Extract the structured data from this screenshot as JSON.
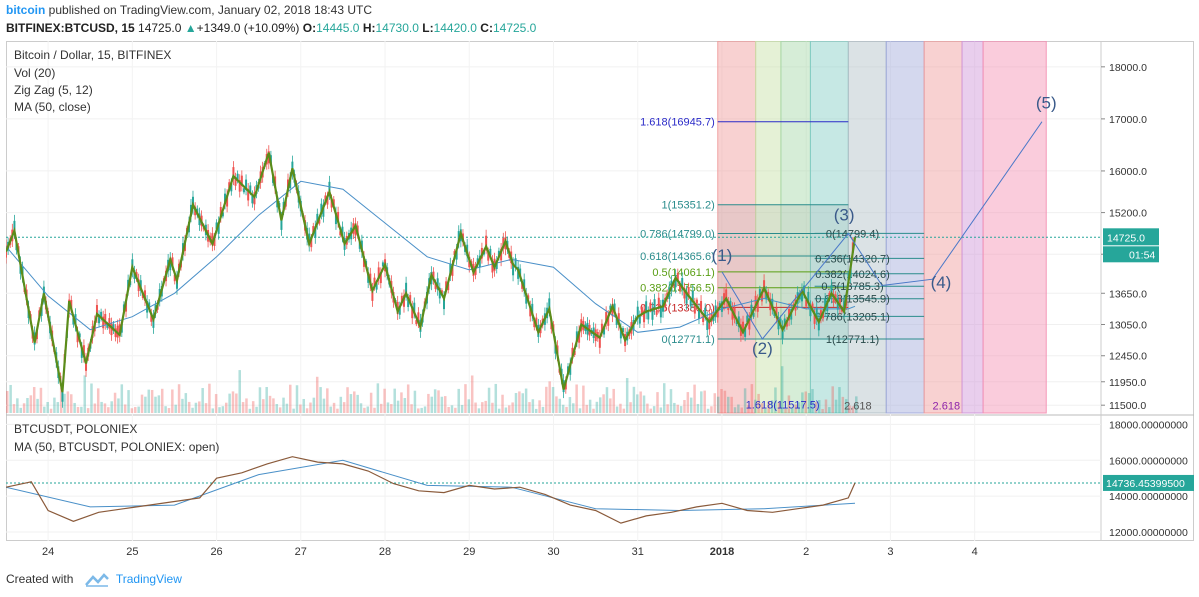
{
  "header": {
    "brand": "bitcoin",
    "published_text": "published on TradingView.com, January 02, 2018 18:43 UTC",
    "symbol": "BITFINEX:BTCUSD, 15",
    "price": "14725.0",
    "change": "+1349.0 (+10.09%)",
    "o_label": "O:",
    "o_value": "14445.0",
    "h_label": "H:",
    "h_value": "14730.0",
    "l_label": "L:",
    "l_value": "14420.0",
    "c_label": "C:",
    "c_value": "14725.0"
  },
  "main_pane": {
    "title": "Bitcoin / Dollar, 15, BITFINEX",
    "indicators": [
      "Vol (20)",
      "Zig Zag (5, 12)",
      "MA (50, close)"
    ],
    "last_price_label": "14725.0",
    "countdown_label": "01:54"
  },
  "lower_pane": {
    "title": "BTCUSDT, POLONIEX",
    "indicator": "MA (50, BTCUSDT, POLONIEX: open)",
    "last_price_label": "14736.45399500"
  },
  "footer": {
    "created_with": "Created with",
    "brand": "TradingView"
  },
  "colors": {
    "up": "#26a69a",
    "down": "#ef5350",
    "zigzag": "#5b8c1a",
    "ma": "#4a90c8",
    "fib_ext": "#2a2ac8"
  },
  "chart_data": [
    {
      "type": "line",
      "title": "Bitcoin / Dollar, 15, BITFINEX",
      "y_axis_ticks": [
        18000,
        17000,
        16000,
        15200,
        14400,
        13650,
        13050,
        12450,
        11950,
        11500
      ],
      "y_tick_labels": [
        "18000.0",
        "17000.0",
        "16000.0",
        "15200.0",
        "14400.0",
        "13650.0",
        "13050.0",
        "12450.0",
        "11950.0",
        "11500.0"
      ],
      "ylim": [
        11350,
        18400
      ],
      "x_tick_labels": [
        "24",
        "25",
        "26",
        "27",
        "28",
        "29",
        "30",
        "31",
        "2018",
        "2",
        "3",
        "4"
      ],
      "x_tick_days": [
        1,
        2,
        3,
        4,
        5,
        6,
        7,
        8,
        9,
        10,
        11,
        12
      ],
      "xlim": [
        0.5,
        13.5
      ],
      "series": [
        {
          "name": "Zig Zag (5, 12)",
          "x": [
            0.5,
            0.6,
            0.84,
            0.95,
            1.17,
            1.25,
            1.45,
            1.58,
            1.85,
            2.0,
            2.25,
            2.45,
            2.53,
            2.72,
            2.95,
            3.2,
            3.45,
            3.62,
            3.77,
            3.9,
            4.1,
            4.34,
            4.52,
            4.65,
            4.85,
            5.0,
            5.15,
            5.25,
            5.42,
            5.55,
            5.7,
            5.9,
            6.05,
            6.2,
            6.3,
            6.43,
            6.52,
            6.58,
            6.82,
            6.95,
            7.12,
            7.33,
            7.55,
            7.7,
            7.85,
            8.0,
            8.1,
            8.3,
            8.45,
            8.58,
            8.85,
            9.05,
            9.25,
            9.5,
            9.72,
            9.95,
            10.15,
            10.3,
            10.45,
            10.58
          ],
          "y": [
            14450,
            14850,
            12700,
            13650,
            11750,
            13500,
            12300,
            13250,
            12850,
            14150,
            13150,
            14300,
            13900,
            15350,
            14600,
            15900,
            15500,
            16350,
            15050,
            16050,
            14600,
            15600,
            14600,
            14950,
            13700,
            14200,
            13300,
            13650,
            13000,
            14000,
            13550,
            14800,
            14050,
            14550,
            14150,
            14650,
            14200,
            14100,
            12900,
            13350,
            11800,
            13050,
            12800,
            13400,
            12750,
            13200,
            13300,
            13400,
            13950,
            13650,
            13100,
            13550,
            12900,
            13750,
            12950,
            13700,
            13100,
            13650,
            13300,
            14725
          ]
        },
        {
          "name": "MA (50, close)",
          "x": [
            0.5,
            1.0,
            1.5,
            2.0,
            2.5,
            3.0,
            3.5,
            4.0,
            4.5,
            5.0,
            5.5,
            6.0,
            6.5,
            7.0,
            7.5,
            8.0,
            8.5,
            9.0,
            9.5,
            10.0,
            10.5,
            10.58
          ],
          "y": [
            14550,
            13600,
            12950,
            13200,
            13650,
            14350,
            15150,
            15800,
            15650,
            15000,
            14350,
            14100,
            14300,
            14150,
            13450,
            12900,
            13000,
            13350,
            13550,
            13350,
            13350,
            13400
          ]
        },
        {
          "name": "Elliott wave path",
          "x": [
            9.0,
            9.48,
            10.5,
            10.9,
            11.5,
            12.8
          ],
          "y": [
            14061,
            12771,
            14799,
            13800,
            13920,
            16945
          ]
        }
      ],
      "elliott_labels": [
        {
          "label": "(1)",
          "x": 9.0,
          "y": 14270
        },
        {
          "label": "(2)",
          "x": 9.48,
          "y": 12480
        },
        {
          "label": "(3)",
          "x": 10.45,
          "y": 15050
        },
        {
          "label": "(4)",
          "x": 11.6,
          "y": 13750
        },
        {
          "label": "(5)",
          "x": 12.85,
          "y": 17200
        }
      ],
      "fib_levels": [
        {
          "label": "1.618(16945.7)",
          "value": 16945.7
        },
        {
          "label": "1(15351.2)",
          "value": 15351.2
        },
        {
          "label": "0.786(14799.0)",
          "value": 14799.0
        },
        {
          "label": "0.618(14365.6)",
          "value": 14365.6
        },
        {
          "label": "0.5(14061.1)",
          "value": 14061.1
        },
        {
          "label": "0.382(13756.5)",
          "value": 13756.5
        },
        {
          "label": "0.236(13380.0)",
          "value": 13380.0
        },
        {
          "label": "0(12771.1)",
          "value": 12771.1
        }
      ],
      "fib_retrace_2": [
        {
          "label": "0(14799.4)",
          "value": 14799.4
        },
        {
          "label": "0.236(14320.7)",
          "value": 14320.7
        },
        {
          "label": "0.382(14024.6)",
          "value": 14024.6
        },
        {
          "label": "0.5(13785.3)",
          "value": 13785.3
        },
        {
          "label": "0.618(13545.9)",
          "value": 13545.9
        },
        {
          "label": "0.786(13205.1)",
          "value": 13205.1
        },
        {
          "label": "1(12771.1)",
          "value": 12771.1
        }
      ],
      "fib_bottom_labels": [
        "1.618(11517.5)",
        "2.618",
        "2.618"
      ],
      "time_zone_colors": [
        "#ef9a9a",
        "#c5e1a5",
        "#a5d6a7",
        "#80cbc4",
        "#b0bec5",
        "#9fa8da",
        "#ef9a9a",
        "#ce93d8",
        "#f48fb1"
      ],
      "time_zone_days": [
        8.95,
        9.4,
        9.7,
        10.05,
        10.5,
        10.95,
        11.4,
        11.85,
        12.1,
        12.85
      ],
      "volume_note": "Vol (20)"
    },
    {
      "type": "line",
      "title": "BTCUSDT, POLONIEX",
      "y_axis_ticks": [
        18000,
        16000,
        14000,
        12000
      ],
      "y_tick_labels": [
        "18000.00000000",
        "16000.00000000",
        "14000.00000000",
        "12000.00000000"
      ],
      "ylim": [
        11500,
        18300
      ],
      "xlim": [
        0.5,
        13.5
      ],
      "series": [
        {
          "name": "BTCUSDT",
          "x": [
            0.5,
            0.8,
            1.0,
            1.3,
            1.6,
            1.9,
            2.2,
            2.5,
            2.8,
            3.0,
            3.3,
            3.6,
            3.9,
            4.2,
            4.5,
            4.8,
            5.1,
            5.4,
            5.7,
            6.0,
            6.3,
            6.6,
            6.9,
            7.2,
            7.5,
            7.8,
            8.1,
            8.4,
            8.7,
            9.0,
            9.3,
            9.6,
            9.9,
            10.2,
            10.5,
            10.58
          ],
          "y": [
            14500,
            14800,
            13200,
            12600,
            13100,
            13300,
            13500,
            13700,
            13900,
            15000,
            15300,
            15800,
            16200,
            15900,
            15800,
            15400,
            14700,
            14300,
            14200,
            14600,
            14400,
            14500,
            14100,
            13500,
            13200,
            12500,
            12900,
            13100,
            13400,
            13600,
            13200,
            13100,
            13300,
            13500,
            13900,
            14736
          ]
        },
        {
          "name": "MA (50, BTCUSDT, POLONIEX: open)",
          "x": [
            0.5,
            1.5,
            2.5,
            3.5,
            4.5,
            5.5,
            6.5,
            7.5,
            8.5,
            9.5,
            10.58
          ],
          "y": [
            14500,
            13400,
            13500,
            15200,
            16000,
            14600,
            14500,
            13300,
            13200,
            13300,
            13600
          ]
        }
      ]
    }
  ]
}
